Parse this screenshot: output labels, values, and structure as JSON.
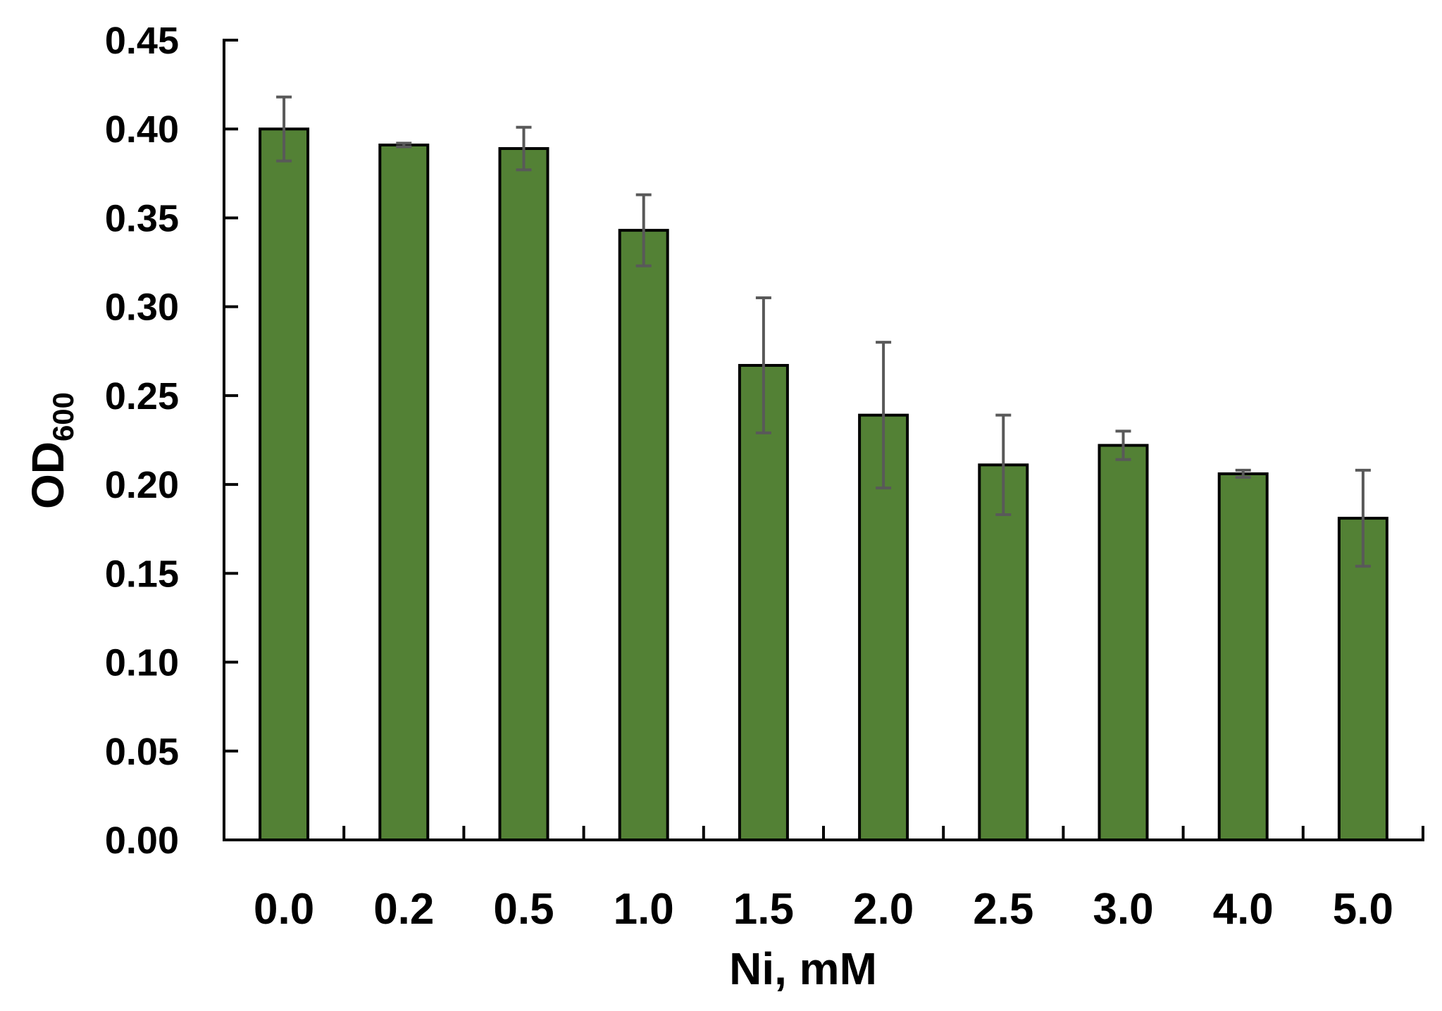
{
  "chart_data": {
    "type": "bar",
    "title": "",
    "xlabel": "Ni, mM",
    "ylabel": "OD600",
    "ylabel_parts": {
      "main": "OD",
      "subscript": "600"
    },
    "categories": [
      "0.0",
      "0.2",
      "0.5",
      "1.0",
      "1.5",
      "2.0",
      "2.5",
      "3.0",
      "4.0",
      "5.0"
    ],
    "series": [
      {
        "name": "OD600",
        "values": [
          0.4,
          0.391,
          0.389,
          0.343,
          0.267,
          0.239,
          0.211,
          0.222,
          0.206,
          0.181
        ],
        "error": [
          0.018,
          0.001,
          0.012,
          0.02,
          0.038,
          0.041,
          0.028,
          0.008,
          0.002,
          0.027
        ],
        "color": "#538135"
      }
    ],
    "ylim": [
      0,
      0.45
    ],
    "yticks": [
      "0.00",
      "0.05",
      "0.10",
      "0.15",
      "0.20",
      "0.25",
      "0.30",
      "0.35",
      "0.40",
      "0.45"
    ],
    "ytick_step": 0.05,
    "grid": false,
    "legend": null,
    "colors": {
      "bar_fill": "#538135",
      "bar_edge": "#000000",
      "error_bar": "#595959",
      "axis": "#000000",
      "text": "#000000",
      "background": "#ffffff"
    }
  }
}
